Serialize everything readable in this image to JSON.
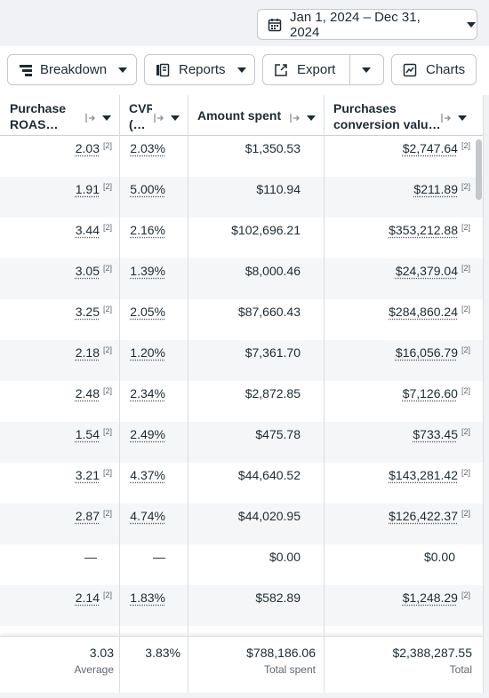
{
  "date_range": {
    "label": "Jan 1, 2024 – Dec 31, 2024"
  },
  "toolbar": {
    "breakdown": "Breakdown",
    "reports": "Reports",
    "export": "Export",
    "charts": "Charts"
  },
  "table": {
    "columns": [
      "Purchase ROAS…",
      "CVR (…",
      "Amount spent",
      "Purchases conversion valu…"
    ],
    "rows": [
      [
        {
          "text": "2.03",
          "note": "[2]"
        },
        {
          "text": "2.03%"
        },
        {
          "text": "$1,350.53"
        },
        {
          "text": "$2,747.64",
          "note": "[2]"
        }
      ],
      [
        {
          "text": "1.91",
          "note": "[2]"
        },
        {
          "text": "5.00%"
        },
        {
          "text": "$110.94"
        },
        {
          "text": "$211.89",
          "note": "[2]"
        }
      ],
      [
        {
          "text": "3.44",
          "note": "[2]"
        },
        {
          "text": "2.16%"
        },
        {
          "text": "$102,696.21"
        },
        {
          "text": "$353,212.88",
          "note": "[2]"
        }
      ],
      [
        {
          "text": "3.05",
          "note": "[2]"
        },
        {
          "text": "1.39%"
        },
        {
          "text": "$8,000.46"
        },
        {
          "text": "$24,379.04",
          "note": "[2]"
        }
      ],
      [
        {
          "text": "3.25",
          "note": "[2]"
        },
        {
          "text": "2.05%"
        },
        {
          "text": "$87,660.43"
        },
        {
          "text": "$284,860.24",
          "note": "[2]"
        }
      ],
      [
        {
          "text": "2.18",
          "note": "[2]"
        },
        {
          "text": "1.20%"
        },
        {
          "text": "$7,361.70"
        },
        {
          "text": "$16,056.79",
          "note": "[2]"
        }
      ],
      [
        {
          "text": "2.48",
          "note": "[2]"
        },
        {
          "text": "2.34%"
        },
        {
          "text": "$2,872.85"
        },
        {
          "text": "$7,126.60",
          "note": "[2]"
        }
      ],
      [
        {
          "text": "1.54",
          "note": "[2]"
        },
        {
          "text": "2.49%"
        },
        {
          "text": "$475.78"
        },
        {
          "text": "$733.45",
          "note": "[2]"
        }
      ],
      [
        {
          "text": "3.21",
          "note": "[2]"
        },
        {
          "text": "4.37%"
        },
        {
          "text": "$44,640.52"
        },
        {
          "text": "$143,281.42",
          "note": "[2]"
        }
      ],
      [
        {
          "text": "2.87",
          "note": "[2]"
        },
        {
          "text": "4.74%"
        },
        {
          "text": "$44,020.95"
        },
        {
          "text": "$126,422.37",
          "note": "[2]"
        }
      ],
      [
        {
          "text": "—"
        },
        {
          "text": "—"
        },
        {
          "text": "$0.00"
        },
        {
          "text": "$0.00"
        }
      ],
      [
        {
          "text": "2.14",
          "note": "[2]"
        },
        {
          "text": "1.83%"
        },
        {
          "text": "$582.89"
        },
        {
          "text": "$1,248.29",
          "note": "[2]"
        }
      ]
    ],
    "footer": [
      {
        "value": "3.03",
        "label": "Average"
      },
      {
        "value": "3.83%"
      },
      {
        "value": "$788,186.06",
        "label": "Total spent"
      },
      {
        "value": "$2,388,287.55",
        "label": "Total"
      }
    ]
  }
}
